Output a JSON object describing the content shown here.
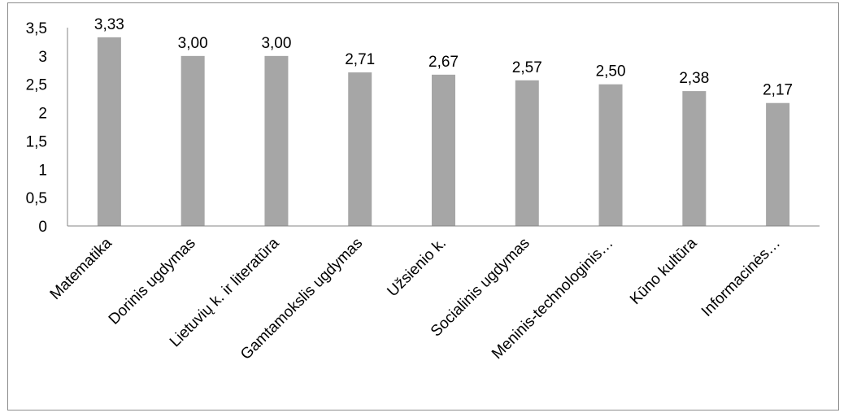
{
  "chart_data": {
    "type": "bar",
    "categories": [
      "Matematika",
      "Dorinis ugdymas",
      "Lietuvių k. ir literatūra",
      "Gamtamokslis ugdymas",
      "Užsienio k.",
      "Socialinis ugdymas",
      "Meninis-technologinis…",
      "Kūno kultūra",
      "Informacinės…"
    ],
    "values": [
      3.33,
      3.0,
      3.0,
      2.71,
      2.67,
      2.57,
      2.5,
      2.38,
      2.17
    ],
    "data_labels": [
      "3,33",
      "3,00",
      "3,00",
      "2,71",
      "2,67",
      "2,57",
      "2,50",
      "2,38",
      "2,17"
    ],
    "y_ticks": [
      0,
      0.5,
      1,
      1.5,
      2,
      2.5,
      3,
      3.5
    ],
    "y_tick_labels": [
      "0",
      "0,5",
      "1",
      "1,5",
      "2",
      "2,5",
      "3",
      "3,5"
    ],
    "ylim": [
      0,
      3.5
    ],
    "title": "",
    "xlabel": "",
    "ylabel": "",
    "grid": false,
    "legend": "none",
    "bar_color": "#a6a6a6",
    "axis_color": "#868686"
  }
}
